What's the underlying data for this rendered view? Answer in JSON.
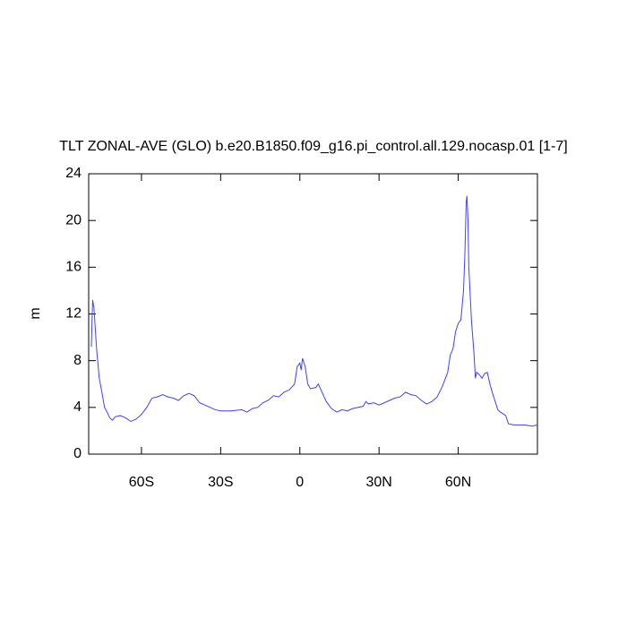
{
  "chart_data": {
    "type": "line",
    "title": "TLT ZONAL-AVE (GLO) b.e20.B1850.f09_g16.pi_control.all.129.nocasp.01 [1-7]",
    "y_label": "m",
    "xlim": [
      -80,
      90
    ],
    "ylim": [
      0,
      24
    ],
    "xticks": [
      {
        "value": -60,
        "label": "60S"
      },
      {
        "value": -30,
        "label": "30S"
      },
      0,
      {
        "value": 30,
        "label": "30N"
      },
      {
        "value": 60,
        "label": "60N"
      }
    ],
    "yticks": [
      0,
      4,
      8,
      12,
      16,
      20,
      24
    ],
    "x": [
      -79,
      -78.5,
      -78,
      -77,
      -76,
      -75,
      -74,
      -73,
      -72,
      -71,
      -70,
      -68,
      -66,
      -64,
      -62,
      -60,
      -58,
      -56,
      -54,
      -52,
      -50,
      -48,
      -46,
      -44,
      -42,
      -40,
      -38,
      -36,
      -34,
      -32,
      -30,
      -26,
      -22,
      -20,
      -18,
      -16,
      -14,
      -12,
      -10,
      -8,
      -6,
      -4,
      -2,
      -1,
      0,
      0.5,
      1,
      2,
      3,
      4,
      6,
      7,
      8,
      10,
      12,
      14,
      16,
      18,
      20,
      22,
      24,
      25,
      26,
      28,
      30,
      32,
      34,
      36,
      38,
      40,
      42,
      44,
      46,
      48,
      50,
      52,
      54,
      56,
      57,
      58,
      59,
      60,
      61,
      62,
      62.5,
      63,
      63.3,
      63.7,
      64,
      65,
      66,
      66.5,
      67,
      68,
      69,
      70,
      71,
      72,
      73,
      74,
      75,
      76,
      78,
      79,
      81,
      85,
      88,
      90
    ],
    "series": [
      {
        "color": "#4040ff",
        "values": [
          9.2,
          13.2,
          12.5,
          9,
          6.5,
          5.3,
          4,
          3.6,
          3.1,
          2.9,
          3.2,
          3.3,
          3.1,
          2.8,
          3.0,
          3.4,
          4.0,
          4.8,
          4.9,
          5.1,
          4.9,
          4.8,
          4.6,
          5.0,
          5.2,
          5.0,
          4.4,
          4.2,
          4.0,
          3.8,
          3.7,
          3.7,
          3.8,
          3.6,
          3.9,
          4.0,
          4.4,
          4.6,
          5.0,
          4.9,
          5.3,
          5.5,
          6.0,
          7.5,
          7.8,
          7.2,
          8.2,
          7.5,
          6.0,
          5.6,
          5.7,
          6.0,
          5.5,
          4.5,
          3.9,
          3.6,
          3.8,
          3.7,
          3.9,
          4.0,
          4.1,
          4.5,
          4.3,
          4.4,
          4.2,
          4.4,
          4.6,
          4.8,
          4.9,
          5.3,
          5.1,
          5.0,
          4.6,
          4.3,
          4.5,
          4.9,
          5.8,
          7.0,
          8.5,
          9.0,
          10.5,
          11.2,
          11.5,
          14.0,
          17.0,
          21.5,
          22.1,
          20.0,
          16,
          11.5,
          8.5,
          6.5,
          7.0,
          6.8,
          6.5,
          6.9,
          7.0,
          6.0,
          5.2,
          4.5,
          3.8,
          3.6,
          3.3,
          2.6,
          2.5,
          2.5,
          2.4,
          2.5
        ]
      }
    ]
  }
}
